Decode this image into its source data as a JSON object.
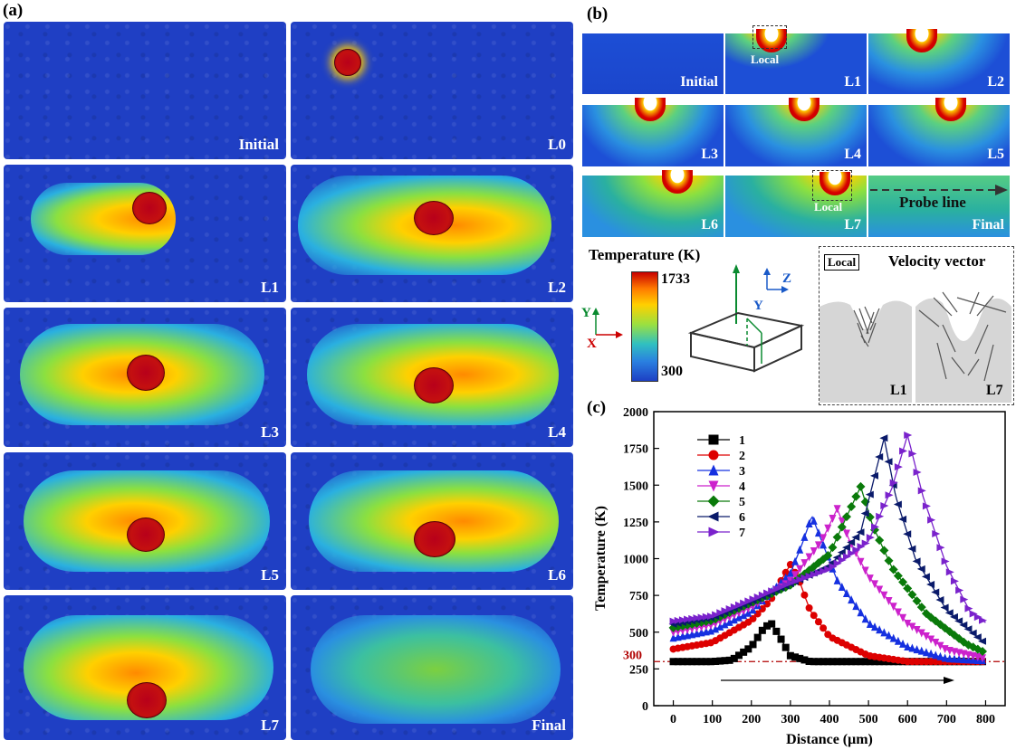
{
  "panel_a": {
    "label": "(a)",
    "tiles": [
      "Initial",
      "L0",
      "L1",
      "L2",
      "L3",
      "L4",
      "L5",
      "L6",
      "L7",
      "Final"
    ]
  },
  "panel_b": {
    "label": "(b)",
    "sections": [
      "Initial",
      "L1",
      "L2",
      "L3",
      "L4",
      "L5",
      "L6",
      "L7",
      "Final"
    ],
    "local_label": "Local",
    "probe_line_label": "Probe line",
    "colorbar": {
      "title": "Temperature (K)",
      "max": "1733",
      "min": "300"
    },
    "axes": {
      "y": "Y",
      "x": "X",
      "z": "Z",
      "y2": "Y"
    },
    "velocity": {
      "title": "Velocity vector",
      "local": "Local",
      "left": "L1",
      "right": "L7"
    }
  },
  "panel_c": {
    "label": "(c)"
  },
  "colors": {
    "s1": "#000000",
    "s2": "#dd0000",
    "s3": "#1530e0",
    "s4": "#cc22cc",
    "s5": "#0a7a0a",
    "s6": "#0a1a6a",
    "s7": "#7a22cc",
    "ref": "#b00000"
  },
  "chart_data": {
    "type": "scatter",
    "xlabel": "Distance (μm)",
    "ylabel": "Temperature (K)",
    "xlim": [
      -50,
      850
    ],
    "ylim": [
      0,
      2000
    ],
    "xticks": [
      0,
      100,
      200,
      300,
      400,
      500,
      600,
      700,
      800
    ],
    "yticks": [
      0,
      250,
      500,
      750,
      1000,
      1250,
      1500,
      1750,
      2000
    ],
    "reference_line": {
      "y": 300,
      "label": "300"
    },
    "series": [
      {
        "name": "1",
        "marker": "square",
        "points": [
          [
            0,
            300
          ],
          [
            100,
            300
          ],
          [
            150,
            310
          ],
          [
            200,
            400
          ],
          [
            230,
            520
          ],
          [
            250,
            565
          ],
          [
            270,
            480
          ],
          [
            300,
            340
          ],
          [
            350,
            300
          ],
          [
            500,
            300
          ],
          [
            800,
            300
          ]
        ]
      },
      {
        "name": "2",
        "marker": "circle",
        "points": [
          [
            0,
            385
          ],
          [
            100,
            430
          ],
          [
            200,
            580
          ],
          [
            250,
            720
          ],
          [
            280,
            870
          ],
          [
            300,
            960
          ],
          [
            320,
            870
          ],
          [
            350,
            650
          ],
          [
            400,
            470
          ],
          [
            500,
            340
          ],
          [
            600,
            300
          ],
          [
            800,
            300
          ]
        ]
      },
      {
        "name": "3",
        "marker": "triangle-up",
        "points": [
          [
            0,
            460
          ],
          [
            100,
            510
          ],
          [
            200,
            640
          ],
          [
            300,
            900
          ],
          [
            330,
            1100
          ],
          [
            355,
            1290
          ],
          [
            380,
            1120
          ],
          [
            420,
            850
          ],
          [
            500,
            560
          ],
          [
            600,
            400
          ],
          [
            700,
            320
          ],
          [
            800,
            305
          ]
        ]
      },
      {
        "name": "4",
        "marker": "triangle-down",
        "points": [
          [
            0,
            500
          ],
          [
            100,
            550
          ],
          [
            200,
            670
          ],
          [
            300,
            850
          ],
          [
            380,
            1120
          ],
          [
            420,
            1340
          ],
          [
            450,
            1130
          ],
          [
            500,
            880
          ],
          [
            600,
            560
          ],
          [
            700,
            380
          ],
          [
            800,
            320
          ]
        ]
      },
      {
        "name": "5",
        "marker": "diamond",
        "points": [
          [
            0,
            530
          ],
          [
            100,
            580
          ],
          [
            200,
            700
          ],
          [
            300,
            820
          ],
          [
            400,
            1030
          ],
          [
            450,
            1320
          ],
          [
            480,
            1490
          ],
          [
            510,
            1230
          ],
          [
            560,
            940
          ],
          [
            650,
            620
          ],
          [
            750,
            420
          ],
          [
            800,
            360
          ]
        ]
      },
      {
        "name": "6",
        "marker": "triangle-left",
        "points": [
          [
            0,
            555
          ],
          [
            100,
            600
          ],
          [
            200,
            710
          ],
          [
            300,
            830
          ],
          [
            400,
            950
          ],
          [
            480,
            1180
          ],
          [
            540,
            1820
          ],
          [
            570,
            1420
          ],
          [
            620,
            1000
          ],
          [
            700,
            650
          ],
          [
            800,
            420
          ]
        ]
      },
      {
        "name": "7",
        "marker": "triangle-right",
        "points": [
          [
            0,
            575
          ],
          [
            100,
            610
          ],
          [
            200,
            720
          ],
          [
            300,
            835
          ],
          [
            400,
            930
          ],
          [
            500,
            1120
          ],
          [
            560,
            1480
          ],
          [
            600,
            1840
          ],
          [
            640,
            1420
          ],
          [
            700,
            950
          ],
          [
            760,
            640
          ],
          [
            800,
            565
          ]
        ]
      }
    ]
  }
}
